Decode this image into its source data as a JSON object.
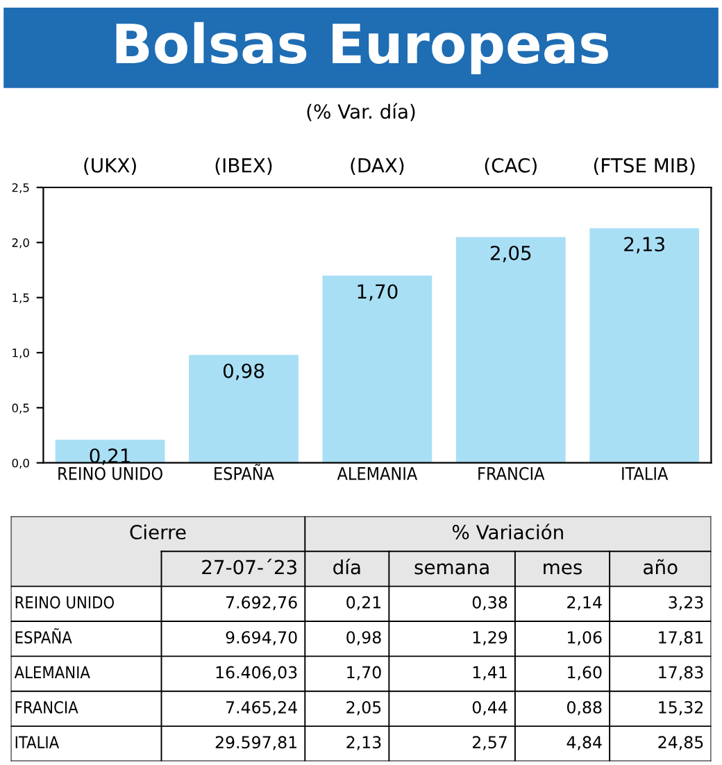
{
  "chart_data": [
    {
      "type": "bar",
      "title": "Bolsas Europeas",
      "subtitle": "(% Var. día)",
      "categories": [
        "REINO UNIDO",
        "ESPAÑA",
        "ALEMANIA",
        "FRANCIA",
        "ITALIA"
      ],
      "values": [
        0.21,
        0.98,
        1.7,
        2.05,
        2.13
      ],
      "value_labels": [
        "0,21",
        "0,98",
        "1,70",
        "2,05",
        "2,13"
      ],
      "color": "#a9dff5",
      "ylim": [
        0,
        2.5
      ],
      "yticks": [
        {
          "value": 0,
          "label": "0,0"
        },
        {
          "value": 0.5,
          "label": "0,5"
        },
        {
          "value": 1,
          "label": "1,0"
        },
        {
          "value": 1.5,
          "label": "1,5"
        },
        {
          "value": 2,
          "label": "2,0"
        },
        {
          "value": 2.5,
          "label": "2,5"
        }
      ],
      "annotations": [
        "(UKX)",
        "(IBEX)",
        "(DAX)",
        "(CAC)",
        "(FTSE MIB)"
      ],
      "grid": false,
      "legend": false
    },
    {
      "type": "other",
      "annotations": [
        "Cierre",
        "% Variación"
      ],
      "categories": [
        "27-07-´23",
        "día",
        "semana",
        "mes",
        "año"
      ],
      "y_categories": [
        "REINO UNIDO",
        "ESPAÑA",
        "ALEMANIA",
        "FRANCIA",
        "ITALIA"
      ],
      "cell_labels": [
        [
          "7.692,76",
          "0,21",
          "0,38",
          "2,14",
          "3,23"
        ],
        [
          "9.694,70",
          "0,98",
          "1,29",
          "1,06",
          "17,81"
        ],
        [
          "16.406,03",
          "1,70",
          "1,41",
          "1,60",
          "17,83"
        ],
        [
          "7.465,24",
          "2,05",
          "0,44",
          "0,88",
          "15,32"
        ],
        [
          "29.597,81",
          "2,13",
          "2,57",
          "4,84",
          "24,85"
        ]
      ]
    }
  ]
}
